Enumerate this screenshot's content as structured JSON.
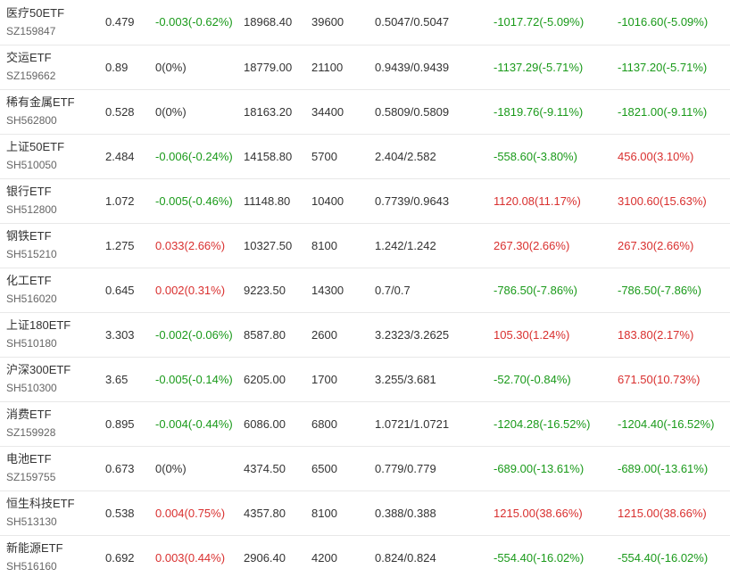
{
  "colors": {
    "up": "#d9302f",
    "down": "#1a9a1a",
    "neutral": "#333333"
  },
  "rows": [
    {
      "name": "医疗50ETF",
      "code": "SZ159847",
      "price": "0.479",
      "change": "-0.003(-0.62%)",
      "change_dir": "down",
      "amount": "18968.40",
      "volume": "39600",
      "cost": "0.5047/0.5047",
      "pl1": "-1017.72(-5.09%)",
      "pl1_dir": "down",
      "pl2": "-1016.60(-5.09%)",
      "pl2_dir": "down"
    },
    {
      "name": "交运ETF",
      "code": "SZ159662",
      "price": "0.89",
      "change": "0(0%)",
      "change_dir": "neutral",
      "amount": "18779.00",
      "volume": "21100",
      "cost": "0.9439/0.9439",
      "pl1": "-1137.29(-5.71%)",
      "pl1_dir": "down",
      "pl2": "-1137.20(-5.71%)",
      "pl2_dir": "down"
    },
    {
      "name": "稀有金属ETF",
      "code": "SH562800",
      "price": "0.528",
      "change": "0(0%)",
      "change_dir": "neutral",
      "amount": "18163.20",
      "volume": "34400",
      "cost": "0.5809/0.5809",
      "pl1": "-1819.76(-9.11%)",
      "pl1_dir": "down",
      "pl2": "-1821.00(-9.11%)",
      "pl2_dir": "down"
    },
    {
      "name": "上证50ETF",
      "code": "SH510050",
      "price": "2.484",
      "change": "-0.006(-0.24%)",
      "change_dir": "down",
      "amount": "14158.80",
      "volume": "5700",
      "cost": "2.404/2.582",
      "pl1": "-558.60(-3.80%)",
      "pl1_dir": "down",
      "pl2": "456.00(3.10%)",
      "pl2_dir": "up"
    },
    {
      "name": "银行ETF",
      "code": "SH512800",
      "price": "1.072",
      "change": "-0.005(-0.46%)",
      "change_dir": "down",
      "amount": "11148.80",
      "volume": "10400",
      "cost": "0.7739/0.9643",
      "pl1": "1120.08(11.17%)",
      "pl1_dir": "up",
      "pl2": "3100.60(15.63%)",
      "pl2_dir": "up"
    },
    {
      "name": "钢铁ETF",
      "code": "SH515210",
      "price": "1.275",
      "change": "0.033(2.66%)",
      "change_dir": "up",
      "amount": "10327.50",
      "volume": "8100",
      "cost": "1.242/1.242",
      "pl1": "267.30(2.66%)",
      "pl1_dir": "up",
      "pl2": "267.30(2.66%)",
      "pl2_dir": "up"
    },
    {
      "name": "化工ETF",
      "code": "SH516020",
      "price": "0.645",
      "change": "0.002(0.31%)",
      "change_dir": "up",
      "amount": "9223.50",
      "volume": "14300",
      "cost": "0.7/0.7",
      "pl1": "-786.50(-7.86%)",
      "pl1_dir": "down",
      "pl2": "-786.50(-7.86%)",
      "pl2_dir": "down"
    },
    {
      "name": "上证180ETF",
      "code": "SH510180",
      "price": "3.303",
      "change": "-0.002(-0.06%)",
      "change_dir": "down",
      "amount": "8587.80",
      "volume": "2600",
      "cost": "3.2323/3.2625",
      "pl1": "105.30(1.24%)",
      "pl1_dir": "up",
      "pl2": "183.80(2.17%)",
      "pl2_dir": "up"
    },
    {
      "name": "沪深300ETF",
      "code": "SH510300",
      "price": "3.65",
      "change": "-0.005(-0.14%)",
      "change_dir": "down",
      "amount": "6205.00",
      "volume": "1700",
      "cost": "3.255/3.681",
      "pl1": "-52.70(-0.84%)",
      "pl1_dir": "down",
      "pl2": "671.50(10.73%)",
      "pl2_dir": "up"
    },
    {
      "name": "消费ETF",
      "code": "SZ159928",
      "price": "0.895",
      "change": "-0.004(-0.44%)",
      "change_dir": "down",
      "amount": "6086.00",
      "volume": "6800",
      "cost": "1.0721/1.0721",
      "pl1": "-1204.28(-16.52%)",
      "pl1_dir": "down",
      "pl2": "-1204.40(-16.52%)",
      "pl2_dir": "down"
    },
    {
      "name": "电池ETF",
      "code": "SZ159755",
      "price": "0.673",
      "change": "0(0%)",
      "change_dir": "neutral",
      "amount": "4374.50",
      "volume": "6500",
      "cost": "0.779/0.779",
      "pl1": "-689.00(-13.61%)",
      "pl1_dir": "down",
      "pl2": "-689.00(-13.61%)",
      "pl2_dir": "down"
    },
    {
      "name": "恒生科技ETF",
      "code": "SH513130",
      "price": "0.538",
      "change": "0.004(0.75%)",
      "change_dir": "up",
      "amount": "4357.80",
      "volume": "8100",
      "cost": "0.388/0.388",
      "pl1": "1215.00(38.66%)",
      "pl1_dir": "up",
      "pl2": "1215.00(38.66%)",
      "pl2_dir": "up"
    },
    {
      "name": "新能源ETF",
      "code": "SH516160",
      "price": "0.692",
      "change": "0.003(0.44%)",
      "change_dir": "up",
      "amount": "2906.40",
      "volume": "4200",
      "cost": "0.824/0.824",
      "pl1": "-554.40(-16.02%)",
      "pl1_dir": "down",
      "pl2": "-554.40(-16.02%)",
      "pl2_dir": "down"
    }
  ]
}
